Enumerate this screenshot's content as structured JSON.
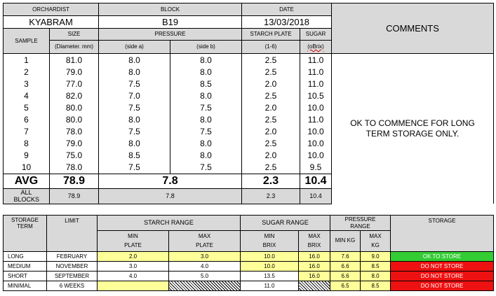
{
  "header": {
    "orchardist_label": "ORCHARDIST",
    "block_label": "BLOCK",
    "date_label": "DATE",
    "orchardist": "KYABRAM",
    "block": "B19",
    "date": "13/03/2018",
    "comments_label": "COMMENTS",
    "sample_label": "SAMPLE",
    "size_label": "SIZE",
    "pressure_label": "PRESSURE",
    "starch_label": "STARCH PLATE",
    "sugar_label": "SUGAR",
    "size_unit": "(Diameter. mm)",
    "side_a": "(side a)",
    "side_b": "(side b)",
    "starch_unit": "(1-6)",
    "sugar_unit": "(oBrix)"
  },
  "samples": [
    {
      "n": "1",
      "size": "81.0",
      "a": "8.0",
      "b": "8.0",
      "starch": "2.5",
      "sugar": "11.0"
    },
    {
      "n": "2",
      "size": "79.0",
      "a": "8.0",
      "b": "8.0",
      "starch": "2.5",
      "sugar": "11.0"
    },
    {
      "n": "3",
      "size": "77.0",
      "a": "7.5",
      "b": "8.5",
      "starch": "2.0",
      "sugar": "11.0"
    },
    {
      "n": "4",
      "size": "82.0",
      "a": "7.0",
      "b": "8.0",
      "starch": "2.5",
      "sugar": "10.5"
    },
    {
      "n": "5",
      "size": "80.0",
      "a": "7.5",
      "b": "7.5",
      "starch": "2.0",
      "sugar": "10.0"
    },
    {
      "n": "6",
      "size": "80.0",
      "a": "8.0",
      "b": "8.0",
      "starch": "2.5",
      "sugar": "11.0"
    },
    {
      "n": "7",
      "size": "78.0",
      "a": "7.5",
      "b": "7.5",
      "starch": "2.0",
      "sugar": "10.0"
    },
    {
      "n": "8",
      "size": "79.0",
      "a": "8.0",
      "b": "8.0",
      "starch": "2.5",
      "sugar": "10.0"
    },
    {
      "n": "9",
      "size": "75.0",
      "a": "8.5",
      "b": "8.0",
      "starch": "2.0",
      "sugar": "10.0"
    },
    {
      "n": "10",
      "size": "78.0",
      "a": "7.5",
      "b": "7.5",
      "starch": "2.5",
      "sugar": "9.5"
    }
  ],
  "comment": "OK TO COMMENCE FOR LONG TERM STORAGE ONLY.",
  "avg": {
    "label": "AVG",
    "size": "78.9",
    "pressure": "7.8",
    "starch": "2.3",
    "sugar": "10.4"
  },
  "all_blocks": {
    "label": "ALL BLOCKS",
    "size": "78.9",
    "pressure": "7.8",
    "starch": "2.3",
    "sugar": "10.4"
  },
  "storage_table": {
    "headers": {
      "storage_term": "STORAGE TERM",
      "limit": "LIMIT",
      "starch_range": "STARCH RANGE",
      "sugar_range": "SUGAR RANGE",
      "pressure_range": "PRESSURE RANGE",
      "storage": "STORAGE",
      "min_plate": "MIN PLATE",
      "max_plate": "MAX PLATE",
      "min_brix": "MIN BRIX",
      "max_brix": "MAX BRIX",
      "min_kg": "MIN KG",
      "max_kg": "MAX KG"
    },
    "rows": [
      {
        "term": "LONG",
        "limit": "FEBRUARY",
        "min_plate": "2.0",
        "max_plate": "3.0",
        "min_brix": "10.0",
        "max_brix": "16.0",
        "min_kg": "7.6",
        "max_kg": "9.0",
        "storage": "OK TO STORE"
      },
      {
        "term": "MEDIUM",
        "limit": "NOVEMBER",
        "min_plate": "3.0",
        "max_plate": "4.0",
        "min_brix": "10.0",
        "max_brix": "16.0",
        "min_kg": "6.6",
        "max_kg": "8.5",
        "storage": "DO NOT STORE"
      },
      {
        "term": "SHORT",
        "limit": "SEPTEMBER",
        "min_plate": "4.0",
        "max_plate": "5.0",
        "min_brix": "13.5",
        "max_brix": "16.0",
        "min_kg": "6.6",
        "max_kg": "8.0",
        "storage": "DO NOT STORE"
      },
      {
        "term": "MINIMAL",
        "limit": "6 WEEKS",
        "min_plate": "",
        "max_plate": "",
        "min_brix": "11.0",
        "max_brix": "",
        "min_kg": "6.5",
        "max_kg": "8.5",
        "storage": "DO NOT STORE"
      }
    ]
  },
  "colors": {
    "ok": "#33cc33",
    "bad": "#ee1111",
    "highlight": "#ffff99",
    "header_bg": "#d9d9d9"
  }
}
